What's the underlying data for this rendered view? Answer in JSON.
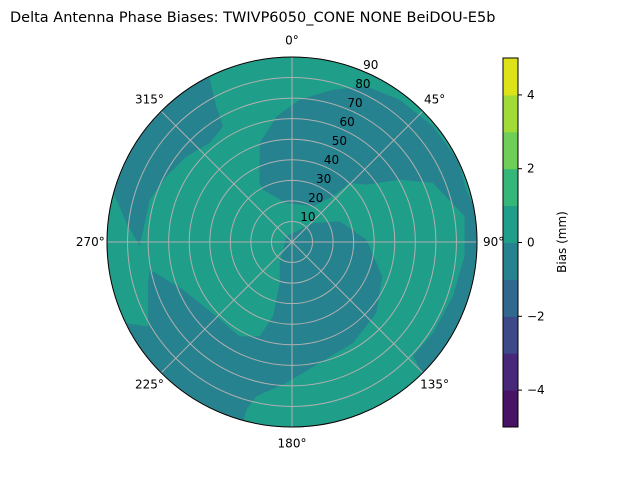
{
  "chart_data": {
    "type": "polar-contour",
    "title": "Delta Antenna Phase Biases: TWIVP6050_CONE  NONE BeiDOU-E5b",
    "theta_direction": "clockwise",
    "theta_zero": "north",
    "theta_ticks": [
      0,
      45,
      90,
      135,
      180,
      225,
      270,
      315
    ],
    "theta_tick_labels": [
      "0°",
      "45°",
      "90°",
      "135°",
      "180°",
      "225°",
      "270°",
      "315°"
    ],
    "r_range": [
      0,
      90
    ],
    "r_ticks": [
      10,
      20,
      30,
      40,
      50,
      60,
      70,
      80,
      90
    ],
    "r_tick_labels": [
      "10",
      "20",
      "30",
      "40",
      "50",
      "60",
      "70",
      "80",
      "90"
    ],
    "grid": true,
    "background_level": [
      0,
      1
    ],
    "regions": [
      {
        "level": [
          -1,
          0
        ],
        "points_az_zenith": [
          [
            331,
            32.7
          ],
          [
            342,
            50.6
          ],
          [
            353,
            61.6
          ],
          [
            3.1,
            69.3
          ],
          [
            15.1,
            76.7
          ],
          [
            25.5,
            83.9
          ],
          [
            37.1,
            86.8
          ],
          [
            50.6,
            88.7
          ],
          [
            63.8,
            90
          ],
          [
            73.3,
            88.5
          ],
          [
            88.2,
            95
          ],
          [
            97.6,
            95
          ],
          [
            111.6,
            95
          ],
          [
            123.8,
            95
          ],
          [
            135.8,
            95
          ],
          [
            133.4,
            80.9
          ],
          [
            122.8,
            81.6
          ],
          [
            108.6,
            82.6
          ],
          [
            94.7,
            84.2
          ],
          [
            81.5,
            84.9
          ],
          [
            67.3,
            74.3
          ],
          [
            59.9,
            60.5
          ],
          [
            52.4,
            45.7
          ],
          [
            44.3,
            40.1
          ],
          [
            41.9,
            29.8
          ],
          [
            30.5,
            20.1
          ],
          [
            351.7,
            19.2
          ],
          [
            331,
            29.1
          ]
        ]
      },
      {
        "level": [
          -1,
          0
        ],
        "points_az_zenith": [
          [
            210.4,
            11.8
          ],
          [
            315,
            3.9
          ],
          [
            47.9,
            13.8
          ],
          [
            66.6,
            25.3
          ],
          [
            88.2,
            36.2
          ],
          [
            110.8,
            47
          ],
          [
            130.1,
            53.6
          ],
          [
            148.9,
            57.4
          ],
          [
            167.1,
            60.3
          ],
          [
            182.3,
            68.6
          ],
          [
            193,
            77
          ],
          [
            195.2,
            84.5
          ],
          [
            195,
            95
          ],
          [
            220,
            95
          ],
          [
            246,
            95
          ],
          [
            239.6,
            81.2
          ],
          [
            254.1,
            72.8
          ],
          [
            259,
            70.5
          ],
          [
            246.4,
            57.9
          ],
          [
            225.5,
            51.6
          ],
          [
            209,
            52.5
          ],
          [
            198.9,
            48.5
          ],
          [
            194.3,
            37.3
          ],
          [
            196.7,
            20.8
          ]
        ]
      },
      {
        "level": [
          -1,
          0
        ],
        "points_az_zenith": [
          [
            334.5,
            95
          ],
          [
            333.3,
            89.3
          ],
          [
            330.8,
            75.5
          ],
          [
            329.2,
            65.5
          ],
          [
            320.3,
            62.6
          ],
          [
            309,
            66.1
          ],
          [
            297.6,
            68.9
          ],
          [
            286.6,
            72.2
          ],
          [
            268.4,
            74.1
          ],
          [
            276.5,
            81
          ],
          [
            285.3,
            90
          ],
          [
            285,
            95
          ],
          [
            310,
            95
          ]
        ]
      }
    ],
    "colorbar": {
      "label": "Bias (mm)",
      "levels": [
        -5,
        -4,
        -3,
        -2,
        -1,
        0,
        1,
        2,
        3,
        4,
        5
      ],
      "ticks": [
        -4,
        -2,
        0,
        2,
        4
      ],
      "tick_labels": [
        "−4",
        "−2",
        "0",
        "2",
        "4"
      ],
      "colors": [
        "#471365",
        "#482878",
        "#3e4989",
        "#31688e",
        "#26828e",
        "#1f9e89",
        "#35b779",
        "#6ece58",
        "#a2da37",
        "#dde318"
      ]
    }
  }
}
